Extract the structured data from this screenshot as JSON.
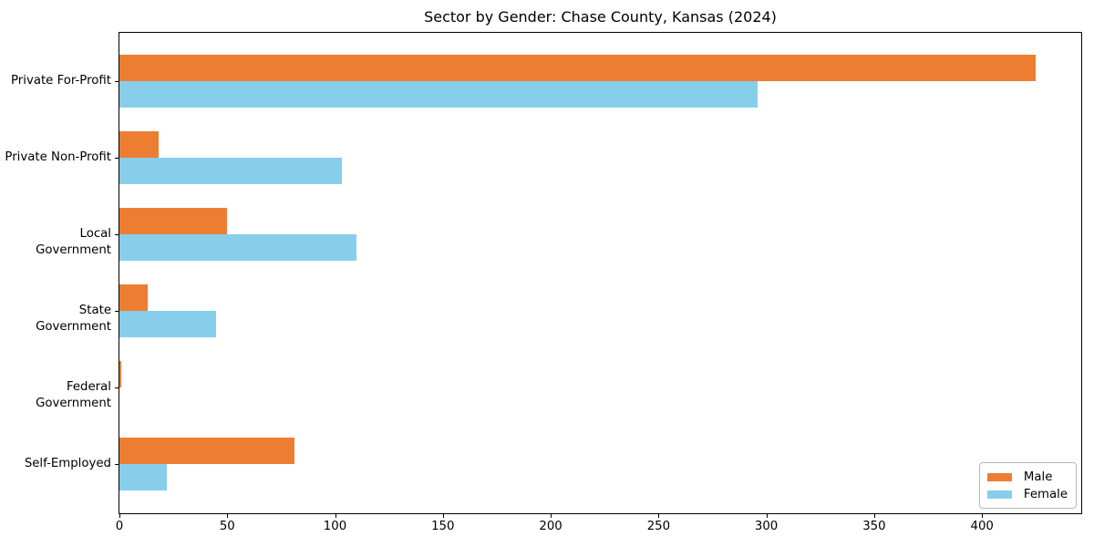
{
  "chart_data": {
    "type": "bar",
    "orientation": "horizontal",
    "title": "Sector by Gender: Chase County, Kansas (2024)",
    "categories": [
      "Private For-Profit",
      "Private Non-Profit",
      "Local Government",
      "State Government",
      "Federal Government",
      "Self-Employed"
    ],
    "series": [
      {
        "name": "Male",
        "color": "#ed7d31",
        "values": [
          425,
          18,
          50,
          13,
          1,
          81
        ]
      },
      {
        "name": "Female",
        "color": "#87ceeb",
        "values": [
          296,
          103,
          110,
          45,
          0,
          22
        ]
      }
    ],
    "xlabel": "",
    "ylabel": "",
    "xlim": [
      0,
      446
    ],
    "xticks": [
      0,
      50,
      100,
      150,
      200,
      250,
      300,
      350,
      400
    ],
    "grid": false,
    "legend_position": "lower right",
    "background_color": "#ffffff",
    "axis_color": "#000000"
  }
}
